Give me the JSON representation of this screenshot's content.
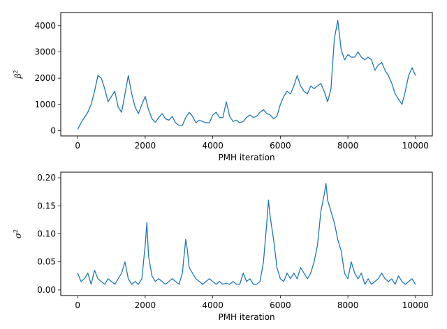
{
  "chart_data": [
    {
      "type": "line",
      "xlabel": "PMH iteration",
      "ylabel": "β",
      "ylabel_superscript": "2",
      "xlim": [
        -500,
        10500
      ],
      "ylim": [
        -200,
        4500
      ],
      "xticks": [
        0,
        2000,
        4000,
        6000,
        8000,
        10000
      ],
      "yticks": [
        0,
        1000,
        2000,
        3000,
        4000
      ],
      "grid": false,
      "color": "#1f77b4",
      "series": [
        {
          "x": [
            0,
            100,
            200,
            300,
            400,
            500,
            600,
            700,
            800,
            900,
            1000,
            1100,
            1200,
            1300,
            1400,
            1500,
            1600,
            1700,
            1800,
            1900,
            2000,
            2100,
            2200,
            2300,
            2400,
            2500,
            2600,
            2700,
            2800,
            2900,
            3000,
            3100,
            3200,
            3300,
            3400,
            3500,
            3600,
            3700,
            3800,
            3900,
            4000,
            4100,
            4200,
            4300,
            4400,
            4500,
            4600,
            4700,
            4800,
            4900,
            5000,
            5100,
            5200,
            5300,
            5400,
            5500,
            5600,
            5700,
            5800,
            5900,
            6000,
            6100,
            6200,
            6300,
            6400,
            6500,
            6600,
            6700,
            6800,
            6900,
            7000,
            7100,
            7200,
            7300,
            7400,
            7500,
            7600,
            7700,
            7800,
            7900,
            8000,
            8100,
            8200,
            8300,
            8400,
            8500,
            8600,
            8700,
            8800,
            8900,
            9000,
            9100,
            9200,
            9300,
            9400,
            9500,
            9600,
            9700,
            9800,
            9900,
            10000
          ],
          "values": [
            50,
            300,
            500,
            700,
            1000,
            1500,
            2100,
            2000,
            1600,
            1100,
            1300,
            1500,
            900,
            700,
            1400,
            2100,
            1400,
            900,
            650,
            1000,
            1300,
            800,
            450,
            320,
            500,
            650,
            450,
            400,
            550,
            300,
            200,
            200,
            500,
            700,
            550,
            300,
            400,
            350,
            300,
            300,
            600,
            700,
            500,
            500,
            1100,
            550,
            350,
            400,
            300,
            350,
            500,
            600,
            500,
            550,
            700,
            800,
            650,
            600,
            450,
            550,
            1000,
            1300,
            1500,
            1400,
            1700,
            2100,
            1700,
            1500,
            1400,
            1700,
            1600,
            1700,
            1800,
            1500,
            1100,
            1600,
            3500,
            4200,
            3100,
            2700,
            2900,
            2800,
            2800,
            3000,
            2800,
            2700,
            2800,
            2700,
            2300,
            2500,
            2600,
            2300,
            2100,
            1800,
            1400,
            1200,
            1000,
            1500,
            2100,
            2400,
            2100
          ]
        }
      ]
    },
    {
      "type": "line",
      "xlabel": "PMH iteration",
      "ylabel": "σ",
      "ylabel_superscript": "2",
      "xlim": [
        -500,
        10500
      ],
      "ylim": [
        -0.01,
        0.21
      ],
      "xticks": [
        0,
        2000,
        4000,
        6000,
        8000,
        10000
      ],
      "yticks": [
        0.0,
        0.05,
        0.1,
        0.15,
        0.2
      ],
      "ytick_labels": [
        "0.00",
        "0.05",
        "0.10",
        "0.15",
        "0.20"
      ],
      "grid": false,
      "color": "#1f77b4",
      "series": [
        {
          "x": [
            0,
            100,
            200,
            300,
            400,
            500,
            600,
            700,
            800,
            900,
            1000,
            1100,
            1200,
            1300,
            1400,
            1500,
            1600,
            1700,
            1800,
            1900,
            2000,
            2050,
            2100,
            2200,
            2300,
            2400,
            2500,
            2600,
            2700,
            2800,
            2900,
            3000,
            3100,
            3200,
            3250,
            3300,
            3400,
            3500,
            3600,
            3700,
            3800,
            3900,
            4000,
            4100,
            4200,
            4300,
            4400,
            4500,
            4600,
            4700,
            4800,
            4900,
            5000,
            5100,
            5200,
            5300,
            5400,
            5500,
            5600,
            5650,
            5700,
            5800,
            5900,
            6000,
            6100,
            6200,
            6300,
            6400,
            6500,
            6600,
            6700,
            6800,
            6900,
            7000,
            7100,
            7200,
            7300,
            7350,
            7400,
            7500,
            7600,
            7700,
            7800,
            7900,
            8000,
            8100,
            8200,
            8300,
            8400,
            8500,
            8600,
            8700,
            8800,
            8900,
            9000,
            9100,
            9200,
            9300,
            9400,
            9500,
            9600,
            9700,
            9800,
            9900,
            10000
          ],
          "values": [
            0.03,
            0.015,
            0.02,
            0.03,
            0.01,
            0.035,
            0.02,
            0.015,
            0.01,
            0.02,
            0.015,
            0.01,
            0.02,
            0.03,
            0.05,
            0.02,
            0.01,
            0.015,
            0.01,
            0.02,
            0.08,
            0.12,
            0.06,
            0.025,
            0.015,
            0.02,
            0.015,
            0.01,
            0.015,
            0.02,
            0.015,
            0.01,
            0.03,
            0.09,
            0.07,
            0.04,
            0.03,
            0.02,
            0.015,
            0.01,
            0.015,
            0.02,
            0.015,
            0.01,
            0.015,
            0.01,
            0.012,
            0.01,
            0.015,
            0.01,
            0.01,
            0.03,
            0.015,
            0.02,
            0.01,
            0.01,
            0.015,
            0.05,
            0.12,
            0.16,
            0.13,
            0.09,
            0.04,
            0.02,
            0.015,
            0.03,
            0.02,
            0.03,
            0.02,
            0.04,
            0.03,
            0.02,
            0.03,
            0.05,
            0.08,
            0.14,
            0.17,
            0.19,
            0.16,
            0.14,
            0.12,
            0.09,
            0.07,
            0.03,
            0.02,
            0.05,
            0.03,
            0.02,
            0.03,
            0.01,
            0.02,
            0.01,
            0.015,
            0.02,
            0.03,
            0.02,
            0.015,
            0.02,
            0.01,
            0.025,
            0.015,
            0.01,
            0.015,
            0.02,
            0.01
          ]
        }
      ]
    }
  ]
}
